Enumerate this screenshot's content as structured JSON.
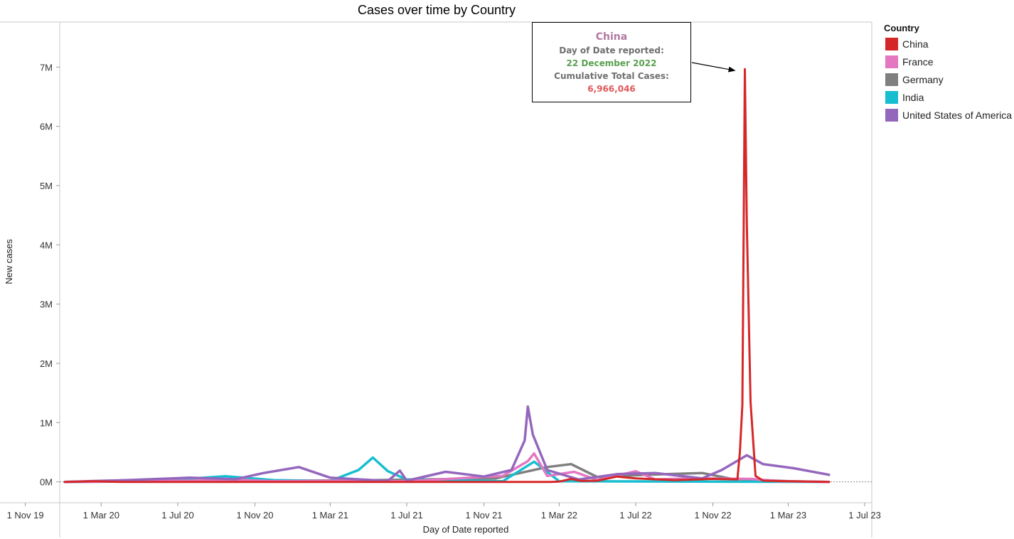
{
  "chart_data": {
    "type": "line",
    "title": "Cases over time by Country",
    "xlabel": "Day of Date reported",
    "ylabel": "New cases",
    "x_range": [
      "2019-10-20",
      "2023-07-10"
    ],
    "ylim": [
      -340000,
      7700000
    ],
    "y_ticks": [
      0,
      1000000,
      2000000,
      3000000,
      4000000,
      5000000,
      6000000,
      7000000
    ],
    "y_tick_labels": [
      "0M",
      "1M",
      "2M",
      "3M",
      "4M",
      "5M",
      "6M",
      "7M"
    ],
    "x_ticks": [
      "2019-11-01",
      "2020-03-01",
      "2020-07-01",
      "2020-11-01",
      "2021-03-01",
      "2021-07-01",
      "2021-11-01",
      "2022-03-01",
      "2022-07-01",
      "2022-11-01",
      "2023-03-01",
      "2023-07-01"
    ],
    "x_tick_labels": [
      "1 Nov 19",
      "1 Mar 20",
      "1 Jul 20",
      "1 Nov 20",
      "1 Mar 21",
      "1 Jul 21",
      "1 Nov 21",
      "1 Mar 22",
      "1 Jul 22",
      "1 Nov 22",
      "1 Mar 23",
      "1 Jul 23"
    ],
    "grid": false,
    "legend_title": "Country",
    "legend_position": "right",
    "series": [
      {
        "name": "China",
        "color": "#d62728",
        "points": [
          [
            "2020-01-03",
            0
          ],
          [
            "2020-02-15",
            10000
          ],
          [
            "2020-04-01",
            0
          ],
          [
            "2021-06-01",
            0
          ],
          [
            "2022-02-15",
            0
          ],
          [
            "2022-03-01",
            5000
          ],
          [
            "2022-03-20",
            50000
          ],
          [
            "2022-04-05",
            15000
          ],
          [
            "2022-05-01",
            20000
          ],
          [
            "2022-06-01",
            90000
          ],
          [
            "2022-07-01",
            60000
          ],
          [
            "2022-09-01",
            30000
          ],
          [
            "2022-11-01",
            50000
          ],
          [
            "2022-12-10",
            40000
          ],
          [
            "2022-12-14",
            500000
          ],
          [
            "2022-12-18",
            1300000
          ],
          [
            "2022-12-22",
            6966046
          ],
          [
            "2022-12-25",
            4400000
          ],
          [
            "2022-12-31",
            1350000
          ],
          [
            "2023-01-08",
            100000
          ],
          [
            "2023-01-20",
            20000
          ],
          [
            "2023-03-01",
            10000
          ],
          [
            "2023-05-05",
            0
          ]
        ]
      },
      {
        "name": "France",
        "color": "#e377c2",
        "points": [
          [
            "2020-01-03",
            0
          ],
          [
            "2020-10-20",
            30000
          ],
          [
            "2020-12-01",
            10000
          ],
          [
            "2021-04-01",
            20000
          ],
          [
            "2021-07-01",
            10000
          ],
          [
            "2021-12-01",
            100000
          ],
          [
            "2022-01-10",
            350000
          ],
          [
            "2022-01-20",
            480000
          ],
          [
            "2022-02-10",
            100000
          ],
          [
            "2022-03-25",
            170000
          ],
          [
            "2022-05-01",
            30000
          ],
          [
            "2022-07-01",
            180000
          ],
          [
            "2022-08-01",
            40000
          ],
          [
            "2022-10-01",
            60000
          ],
          [
            "2023-01-01",
            50000
          ],
          [
            "2023-02-15",
            10000
          ],
          [
            "2023-05-05",
            0
          ]
        ]
      },
      {
        "name": "Germany",
        "color": "#7f7f7f",
        "points": [
          [
            "2020-01-03",
            0
          ],
          [
            "2020-11-01",
            20000
          ],
          [
            "2021-04-15",
            25000
          ],
          [
            "2021-11-20",
            60000
          ],
          [
            "2022-02-10",
            250000
          ],
          [
            "2022-03-20",
            300000
          ],
          [
            "2022-05-01",
            80000
          ],
          [
            "2022-07-15",
            120000
          ],
          [
            "2022-10-15",
            150000
          ],
          [
            "2022-12-01",
            50000
          ],
          [
            "2023-03-01",
            10000
          ],
          [
            "2023-05-05",
            0
          ]
        ]
      },
      {
        "name": "India",
        "color": "#17becf",
        "points": [
          [
            "2020-01-03",
            0
          ],
          [
            "2020-06-01",
            20000
          ],
          [
            "2020-09-15",
            95000
          ],
          [
            "2020-12-01",
            30000
          ],
          [
            "2021-03-01",
            15000
          ],
          [
            "2021-04-15",
            200000
          ],
          [
            "2021-05-08",
            410000
          ],
          [
            "2021-06-01",
            180000
          ],
          [
            "2021-07-01",
            40000
          ],
          [
            "2021-12-01",
            10000
          ],
          [
            "2022-01-20",
            340000
          ],
          [
            "2022-03-01",
            10000
          ],
          [
            "2023-05-05",
            0
          ]
        ]
      },
      {
        "name": "United States of America",
        "color": "#9467bd",
        "points": [
          [
            "2020-01-03",
            0
          ],
          [
            "2020-04-10",
            30000
          ],
          [
            "2020-07-20",
            70000
          ],
          [
            "2020-10-01",
            45000
          ],
          [
            "2020-11-15",
            150000
          ],
          [
            "2021-01-10",
            250000
          ],
          [
            "2021-03-01",
            70000
          ],
          [
            "2021-06-01",
            15000
          ],
          [
            "2021-06-20",
            190000
          ],
          [
            "2021-07-01",
            20000
          ],
          [
            "2021-09-01",
            170000
          ],
          [
            "2021-11-01",
            90000
          ],
          [
            "2021-12-15",
            200000
          ],
          [
            "2022-01-05",
            700000
          ],
          [
            "2022-01-10",
            1270000
          ],
          [
            "2022-01-18",
            800000
          ],
          [
            "2022-02-10",
            200000
          ],
          [
            "2022-04-01",
            40000
          ],
          [
            "2022-06-01",
            130000
          ],
          [
            "2022-08-01",
            150000
          ],
          [
            "2022-10-15",
            60000
          ],
          [
            "2022-11-15",
            200000
          ],
          [
            "2022-12-25",
            450000
          ],
          [
            "2023-01-20",
            300000
          ],
          [
            "2023-03-10",
            230000
          ],
          [
            "2023-05-05",
            120000
          ]
        ]
      }
    ],
    "annotation": {
      "series": "China",
      "date": "2022-12-22",
      "value": 6966046
    }
  },
  "tooltip": {
    "country": "China",
    "date_label": "Day of Date reported:",
    "date_value": "22 December 2022",
    "value_label": "Cumulative Total Cases:",
    "value_text": "6,966,046"
  }
}
